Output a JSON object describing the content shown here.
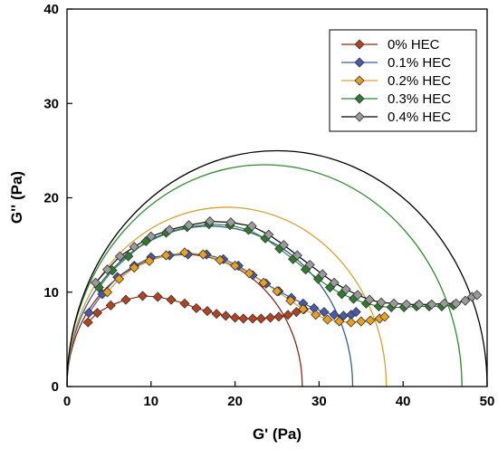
{
  "chart_data": {
    "type": "scatter",
    "xlabel": "G' (Pa)",
    "ylabel": "G'' (Pa)",
    "xlim": [
      0,
      50
    ],
    "ylim": [
      0,
      40
    ],
    "xticks": [
      0,
      10,
      20,
      30,
      40,
      50
    ],
    "yticks": [
      0,
      10,
      20,
      30,
      40
    ],
    "grid": false,
    "legend_position": "top-right",
    "series": [
      {
        "name": "0% HEC",
        "color": "#b5421f",
        "line_color": "#8b2a1a",
        "points": [
          [
            2.5,
            6.8
          ],
          [
            3.6,
            7.8
          ],
          [
            5.2,
            8.6
          ],
          [
            7.0,
            9.2
          ],
          [
            9.0,
            9.6
          ],
          [
            10.8,
            9.5
          ],
          [
            12.4,
            9.2
          ],
          [
            14.0,
            8.8
          ],
          [
            15.4,
            8.3
          ],
          [
            16.7,
            8.0
          ],
          [
            17.8,
            7.7
          ],
          [
            18.9,
            7.5
          ],
          [
            20.0,
            7.3
          ],
          [
            21.0,
            7.2
          ],
          [
            22.1,
            7.2
          ],
          [
            23.1,
            7.2
          ],
          [
            24.2,
            7.3
          ],
          [
            25.2,
            7.4
          ],
          [
            26.3,
            7.6
          ],
          [
            27.3,
            7.9
          ],
          [
            28.2,
            8.2
          ]
        ],
        "semicircle": {
          "start": 0,
          "end": 28
        }
      },
      {
        "name": "0.1% HEC",
        "color": "#4a5aa8",
        "line_color": "#3a5aa0",
        "points": [
          [
            2.6,
            7.8
          ],
          [
            4.2,
            9.8
          ],
          [
            6.0,
            11.6
          ],
          [
            8.0,
            12.8
          ],
          [
            10.0,
            13.7
          ],
          [
            12.2,
            13.9
          ],
          [
            14.4,
            14.0
          ],
          [
            16.6,
            14.0
          ],
          [
            18.6,
            13.5
          ],
          [
            20.4,
            12.8
          ],
          [
            22.1,
            11.8
          ],
          [
            23.7,
            10.9
          ],
          [
            25.2,
            10.1
          ],
          [
            26.7,
            9.4
          ],
          [
            28.1,
            8.8
          ],
          [
            29.4,
            8.3
          ],
          [
            30.6,
            7.9
          ],
          [
            31.8,
            7.6
          ],
          [
            32.9,
            7.5
          ],
          [
            33.8,
            7.6
          ],
          [
            34.4,
            7.9
          ]
        ],
        "semicircle": {
          "start": 0,
          "end": 34
        }
      },
      {
        "name": "0.2% HEC",
        "color": "#e8a020",
        "line_color": "#d8a030",
        "points": [
          [
            4.8,
            10.0
          ],
          [
            6.2,
            11.4
          ],
          [
            8.0,
            12.6
          ],
          [
            9.8,
            13.3
          ],
          [
            11.8,
            13.9
          ],
          [
            14.0,
            14.2
          ],
          [
            16.2,
            14.0
          ],
          [
            18.2,
            13.4
          ],
          [
            20.0,
            12.8
          ],
          [
            21.7,
            12.0
          ],
          [
            23.4,
            11.0
          ],
          [
            25.0,
            10.1
          ],
          [
            26.6,
            9.1
          ],
          [
            28.1,
            8.2
          ],
          [
            29.6,
            7.6
          ],
          [
            31.0,
            7.1
          ],
          [
            32.4,
            6.9
          ],
          [
            33.8,
            6.8
          ],
          [
            35.0,
            6.9
          ],
          [
            36.1,
            7.0
          ],
          [
            37.2,
            7.2
          ],
          [
            37.8,
            7.4
          ]
        ],
        "semicircle": {
          "start": 0,
          "end": 38
        }
      },
      {
        "name": "0.3% HEC",
        "color": "#2e7d2e",
        "line_color": "#2e8b2e",
        "points": [
          [
            3.8,
            10.5
          ],
          [
            5.4,
            12.3
          ],
          [
            7.3,
            13.8
          ],
          [
            9.4,
            15.4
          ],
          [
            11.8,
            16.3
          ],
          [
            14.3,
            16.9
          ],
          [
            16.9,
            17.2
          ],
          [
            19.4,
            17.1
          ],
          [
            21.6,
            16.6
          ],
          [
            23.6,
            15.7
          ],
          [
            25.3,
            14.6
          ],
          [
            26.9,
            13.5
          ],
          [
            28.4,
            12.4
          ],
          [
            29.9,
            11.4
          ],
          [
            31.3,
            10.5
          ],
          [
            32.7,
            9.8
          ],
          [
            34.1,
            9.3
          ],
          [
            35.6,
            8.8
          ],
          [
            37.1,
            8.5
          ],
          [
            38.6,
            8.4
          ],
          [
            40.1,
            8.4
          ],
          [
            41.6,
            8.5
          ],
          [
            43.1,
            8.5
          ],
          [
            44.6,
            8.5
          ],
          [
            46.0,
            8.6
          ]
        ],
        "semicircle": {
          "start": 0,
          "end": 47
        }
      },
      {
        "name": "0.4% HEC",
        "color": "#9a9a9a",
        "line_color": "#000000",
        "points": [
          [
            3.4,
            11.0
          ],
          [
            4.8,
            12.4
          ],
          [
            6.3,
            13.8
          ],
          [
            8.0,
            14.8
          ],
          [
            10.0,
            15.9
          ],
          [
            12.2,
            16.6
          ],
          [
            14.5,
            17.1
          ],
          [
            17.0,
            17.5
          ],
          [
            19.5,
            17.4
          ],
          [
            22.0,
            17.0
          ],
          [
            24.0,
            16.1
          ],
          [
            25.8,
            15.0
          ],
          [
            27.4,
            13.9
          ],
          [
            28.9,
            12.9
          ],
          [
            30.4,
            11.9
          ],
          [
            31.8,
            11.0
          ],
          [
            33.2,
            10.3
          ],
          [
            34.6,
            9.7
          ],
          [
            36.0,
            9.2
          ],
          [
            37.4,
            8.9
          ],
          [
            38.9,
            8.8
          ],
          [
            40.4,
            8.7
          ],
          [
            41.9,
            8.7
          ],
          [
            43.4,
            8.7
          ],
          [
            44.9,
            8.8
          ],
          [
            46.3,
            8.8
          ],
          [
            47.4,
            9.1
          ],
          [
            48.2,
            9.5
          ],
          [
            48.8,
            9.7
          ]
        ],
        "semicircle": {
          "start": 0,
          "end": 50
        }
      }
    ]
  }
}
